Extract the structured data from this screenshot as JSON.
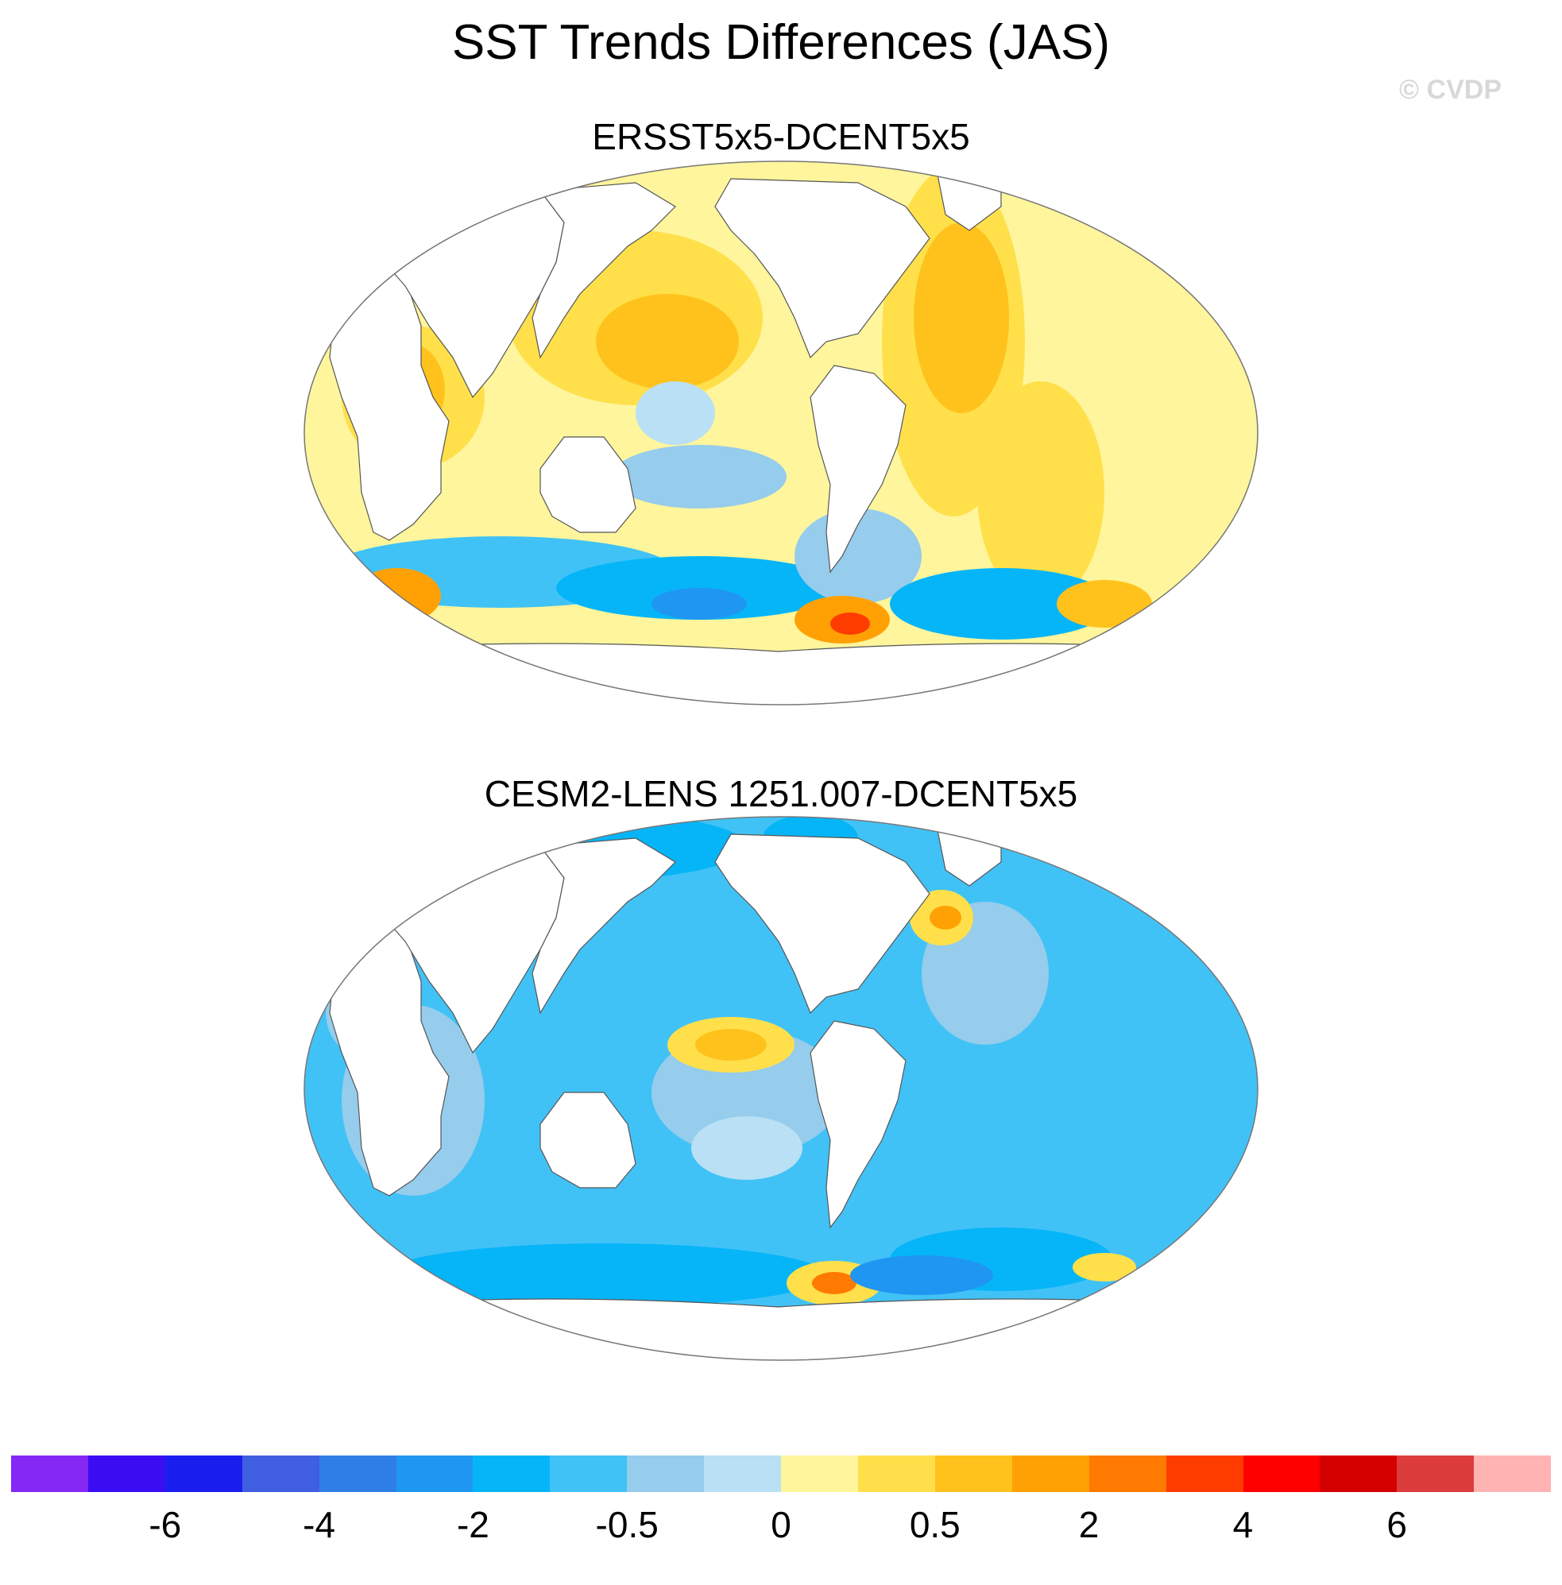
{
  "title": "SST Trends Differences (JAS)",
  "watermark": "© CVDP",
  "panels": [
    {
      "title": "ERSST5x5-DCENT5x5",
      "field_bias": "warm",
      "base_color": "#fff59c"
    },
    {
      "title": "CESM2-LENS 1251.007-DCENT5x5",
      "field_bias": "cool",
      "base_color": "#41c2f6"
    }
  ],
  "colorbar": {
    "colors": [
      "#8527f5",
      "#3b0df2",
      "#1a1ff0",
      "#3f5fe0",
      "#2f7ee8",
      "#1f97f2",
      "#06b5f8",
      "#41c2f6",
      "#96ccec",
      "#b9e0f4",
      "#fff59c",
      "#ffe04b",
      "#ffc21c",
      "#ffa105",
      "#ff7a00",
      "#ff3c00",
      "#ff0000",
      "#d40000",
      "#dc3c3c",
      "#ffb3b3"
    ],
    "tick_labels": [
      "-6",
      "-4",
      "-2",
      "-0.5",
      "0",
      "0.5",
      "2",
      "4",
      "6"
    ],
    "tick_boundaries": [
      2,
      4,
      6,
      8,
      10,
      12,
      14,
      16,
      18
    ]
  }
}
